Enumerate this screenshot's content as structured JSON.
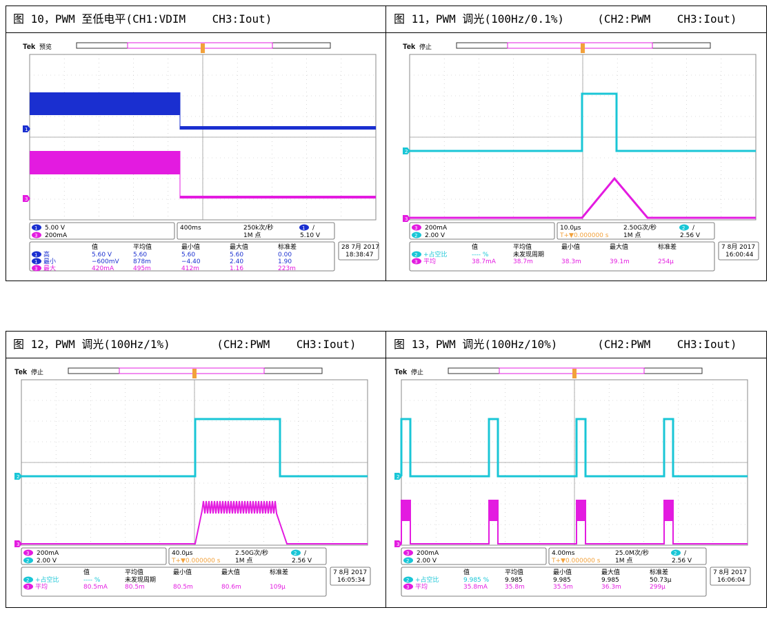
{
  "figures": [
    {
      "caption": "图 10，PWM 至低电平(CH1:VDIM    CH3:Iout)",
      "tek": "Tek",
      "status": "预览",
      "channels": [
        {
          "num": "1",
          "scale": "5.00 V",
          "color": "#1a2fd0"
        },
        {
          "num": "3",
          "scale": "200mA",
          "color": "#e31be0"
        }
      ],
      "timebase": "400ms",
      "sample_rate": "250k次/秒",
      "record_length": "1M 点",
      "trigger_ch": "1",
      "trigger_level": "5.10 V",
      "trigger_offset": "",
      "meas_header": [
        "值",
        "平均值",
        "最小值",
        "最大值",
        "标准差"
      ],
      "meas_rows": [
        {
          "ch": "1",
          "name": "高",
          "values": [
            "5.60 V",
            "5.60",
            "5.60",
            "5.60",
            "0.00"
          ],
          "color": "#1a2fd0"
        },
        {
          "ch": "1",
          "name": "最小",
          "values": [
            "−600mV",
            "878m",
            "−4.40",
            "2.40",
            "1.90"
          ],
          "color": "#1a2fd0"
        },
        {
          "ch": "3",
          "name": "最大",
          "values": [
            "420mA",
            "495m",
            "412m",
            "1.16",
            "223m"
          ],
          "color": "#e31be0"
        }
      ],
      "date": "28 7月 2017",
      "time": "18:38:47"
    },
    {
      "caption": "图 11，PWM 调光(100Hz/0.1%)     (CH2:PWM    CH3:Iout)",
      "tek": "Tek",
      "status": "停止",
      "channels": [
        {
          "num": "3",
          "scale": "200mA",
          "color": "#e31be0"
        },
        {
          "num": "2",
          "scale": "2.00 V",
          "color": "#19c6d6"
        }
      ],
      "timebase": "10.0μs",
      "sample_rate": "2.50G次/秒",
      "record_length": "1M 点",
      "trigger_ch": "2",
      "trigger_level": "2.56 V",
      "trigger_offset": "T+▼0.000000 s",
      "meas_header": [
        "值",
        "平均值",
        "最小值",
        "最大值",
        "标准差"
      ],
      "meas_rows": [
        {
          "ch": "2",
          "name": "+占空比",
          "values": [
            "---- %",
            "未发现周期",
            "",
            "",
            ""
          ],
          "color": "#19c6d6"
        },
        {
          "ch": "3",
          "name": "平均",
          "values": [
            "38.7mA",
            "38.7m",
            "38.3m",
            "39.1m",
            "254μ"
          ],
          "color": "#e31be0"
        }
      ],
      "date": "7 8月 2017",
      "time": "16:00:44"
    },
    {
      "caption": "图 12，PWM 调光(100Hz/1%)       (CH2:PWM    CH3:Iout)",
      "tek": "Tek",
      "status": "停止",
      "channels": [
        {
          "num": "3",
          "scale": "200mA",
          "color": "#e31be0"
        },
        {
          "num": "2",
          "scale": "2.00 V",
          "color": "#19c6d6"
        }
      ],
      "timebase": "40.0μs",
      "sample_rate": "2.50G次/秒",
      "record_length": "1M 点",
      "trigger_ch": "2",
      "trigger_level": "2.56 V",
      "trigger_offset": "T+▼0.000000 s",
      "meas_header": [
        "值",
        "平均值",
        "最小值",
        "最大值",
        "标准差"
      ],
      "meas_rows": [
        {
          "ch": "2",
          "name": "+占空比",
          "values": [
            "---- %",
            "未发现周期",
            "",
            "",
            ""
          ],
          "color": "#19c6d6"
        },
        {
          "ch": "3",
          "name": "平均",
          "values": [
            "80.5mA",
            "80.5m",
            "80.5m",
            "80.6m",
            "109μ"
          ],
          "color": "#e31be0"
        }
      ],
      "date": "7 8月 2017",
      "time": "16:05:34"
    },
    {
      "caption": "图 13，PWM 调光(100Hz/10%)      (CH2:PWM    CH3:Iout)",
      "tek": "Tek",
      "status": "停止",
      "channels": [
        {
          "num": "3",
          "scale": "200mA",
          "color": "#e31be0"
        },
        {
          "num": "2",
          "scale": "2.00 V",
          "color": "#19c6d6"
        }
      ],
      "timebase": "4.00ms",
      "sample_rate": "25.0M次/秒",
      "record_length": "1M 点",
      "trigger_ch": "2",
      "trigger_level": "2.56 V",
      "trigger_offset": "T+▼0.000000 s",
      "meas_header": [
        "值",
        "平均值",
        "最小值",
        "最大值",
        "标准差"
      ],
      "meas_rows": [
        {
          "ch": "2",
          "name": "+占空比",
          "values": [
            "9.985 %",
            "9.985",
            "9.985",
            "9.985",
            "50.73μ"
          ],
          "color": "#19c6d6"
        },
        {
          "ch": "3",
          "name": "平均",
          "values": [
            "35.8mA",
            "35.8m",
            "35.5m",
            "36.3m",
            "299μ"
          ],
          "color": "#e31be0"
        }
      ],
      "date": "7 8月 2017",
      "time": "16:06:04"
    }
  ]
}
